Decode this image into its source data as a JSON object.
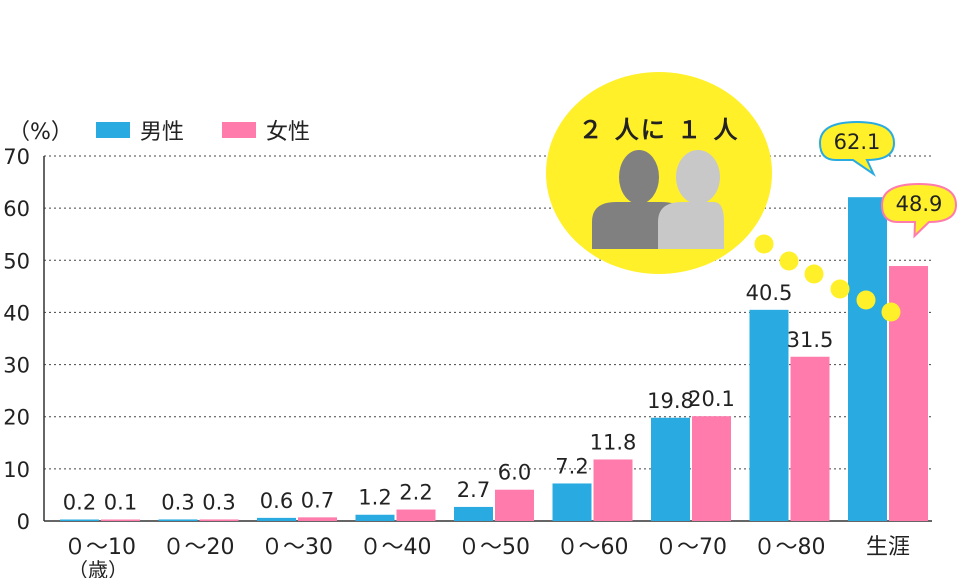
{
  "chart_data": {
    "type": "bar",
    "ylabel": "（%）",
    "ylim": [
      0,
      70
    ],
    "yticks": [
      0,
      10,
      20,
      30,
      40,
      50,
      60,
      70
    ],
    "categories": [
      "０～10",
      "０～20",
      "０～30",
      "０～40",
      "０～50",
      "０～60",
      "０～70",
      "０～80",
      "生涯"
    ],
    "x_unit_label": "（歳）",
    "series": [
      {
        "name": "男性",
        "color": "#29abe2",
        "values": [
          0.2,
          0.3,
          0.6,
          1.2,
          2.7,
          7.2,
          19.8,
          40.5,
          62.1
        ]
      },
      {
        "name": "女性",
        "color": "#ff7bac",
        "values": [
          0.1,
          0.3,
          0.7,
          2.2,
          6.0,
          11.8,
          20.1,
          31.5,
          48.9
        ]
      }
    ],
    "value_labels": [
      [
        "0.2",
        "0.3",
        "0.6",
        "1.2",
        "2.7",
        "7.2",
        "19.8",
        "40.5",
        "62.1"
      ],
      [
        "0.1",
        "0.3",
        "0.7",
        "2.2",
        "6.0",
        "11.8",
        "20.1",
        "31.5",
        "48.9"
      ]
    ],
    "grid": "horizontal-dotted",
    "legend_position": "top-left",
    "annotation": {
      "text": "２ 人に １ 人",
      "circle_color": "#fff02a",
      "person_dark_color": "#808080",
      "person_light_color": "#c8c8c8"
    }
  }
}
